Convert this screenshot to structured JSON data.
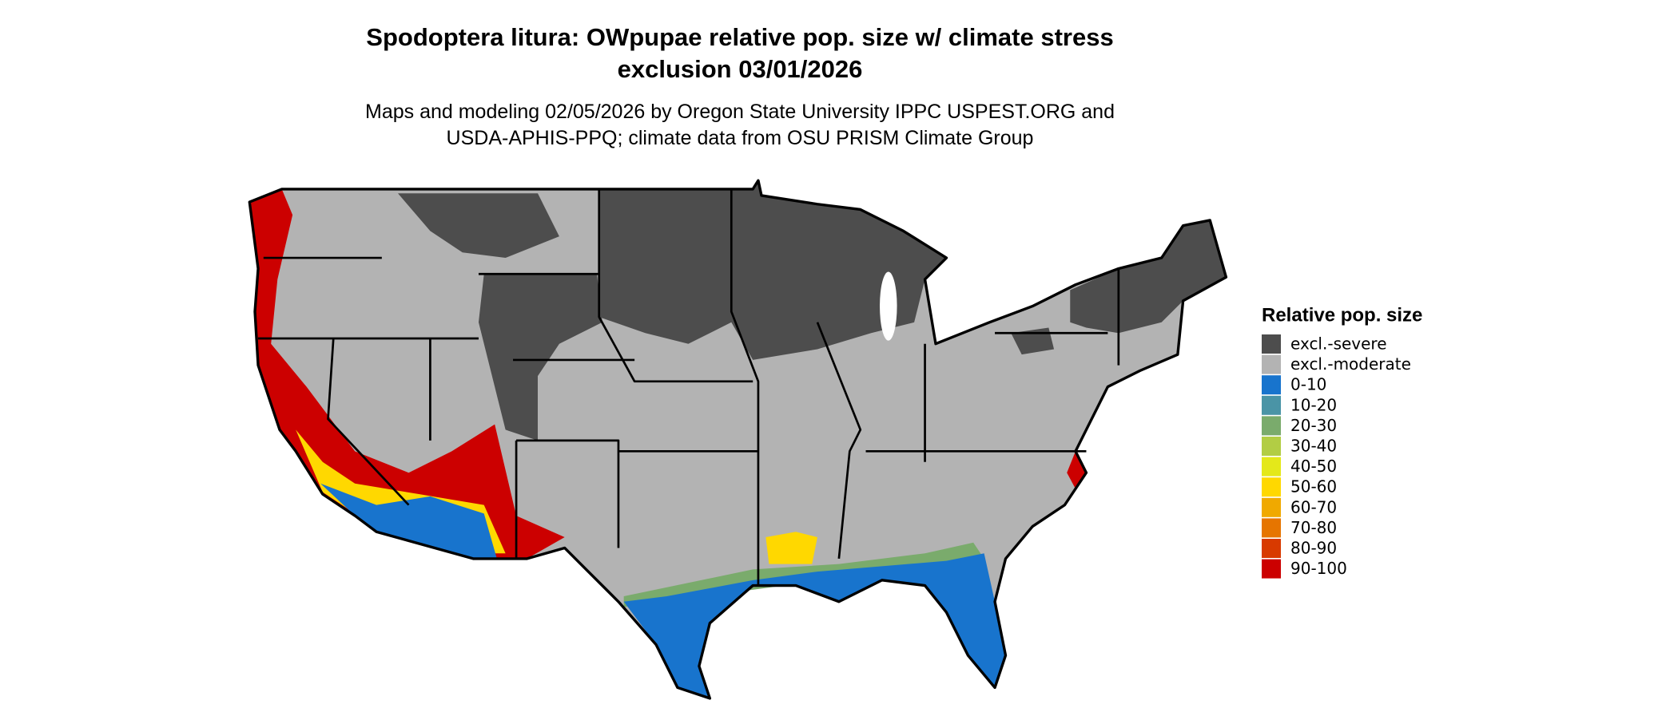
{
  "title": [
    "Spodoptera litura: OWpupae relative pop. size w/ climate stress",
    "exclusion 03/01/2026"
  ],
  "subtitle": [
    "Maps and modeling 02/05/2026 by Oregon State University IPPC USPEST.ORG and",
    "USDA-APHIS-PPQ; climate data from OSU PRISM Climate Group"
  ],
  "legend": {
    "title": "Relative pop. size",
    "items": [
      {
        "label": "excl.-severe",
        "color": "#4d4d4d"
      },
      {
        "label": "excl.-moderate",
        "color": "#b3b3b3"
      },
      {
        "label": "0-10",
        "color": "#1874cd"
      },
      {
        "label": "10-20",
        "color": "#4a94a6"
      },
      {
        "label": "20-30",
        "color": "#7aab6c"
      },
      {
        "label": "30-40",
        "color": "#b2cd44"
      },
      {
        "label": "40-50",
        "color": "#e4e81a"
      },
      {
        "label": "50-60",
        "color": "#ffd800"
      },
      {
        "label": "60-70",
        "color": "#f0a900"
      },
      {
        "label": "70-80",
        "color": "#e67500"
      },
      {
        "label": "80-90",
        "color": "#d83a00"
      },
      {
        "label": "90-100",
        "color": "#cc0000"
      }
    ]
  }
}
